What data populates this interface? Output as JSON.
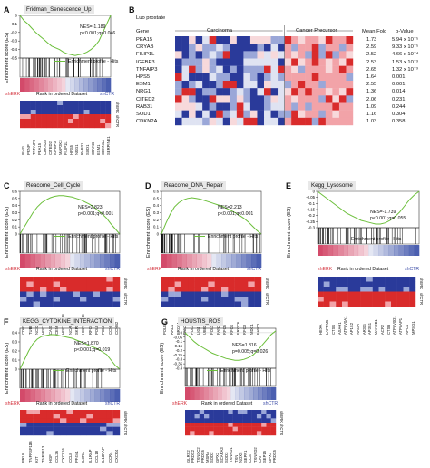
{
  "panels": {
    "A": {
      "label": "A",
      "title": "Fridman_Senescence_Up",
      "nes": "NES=-1.189",
      "p": "p<0.001;q=0.046",
      "legend": "Enrichment profile - Hits",
      "left": "shERK",
      "mid": "Rank in ordered Dataset",
      "right": "shCTR",
      "ylabel": "Enrichment score (ES)",
      "genes": [
        "IFNG",
        "PRNP",
        "TNFAIP3",
        "PEA15",
        "CDKN2A",
        "CITED2",
        "IGFBP3",
        "MAP2K3",
        "FILIP1L",
        "HPS5",
        "NRG1",
        "RAB31",
        "SOD1",
        "CRYAB",
        "ESM1",
        "CDKN1A",
        "SERPINE1"
      ],
      "right_labels": [
        "shERK",
        "shCTR"
      ],
      "yticks": [
        "0",
        "-0.1",
        "-0.2",
        "-0.3",
        "-0.4",
        "-0.5"
      ],
      "axis": [
        0,
        -0.5
      ],
      "curve": [
        0,
        -0.06,
        -0.1,
        -0.15,
        -0.2,
        -0.24,
        -0.28,
        -0.32,
        -0.36,
        -0.38,
        -0.4,
        -0.43,
        -0.45,
        -0.46,
        -0.47,
        -0.46,
        -0.45,
        -0.43,
        -0.4,
        -0.36,
        -0.3,
        -0.2,
        -0.1,
        0
      ]
    },
    "B": {
      "label": "B",
      "source": "Luo prostate",
      "gene_head": "Gene",
      "group1": "Carcinoma",
      "group2": "Cancer Precursor",
      "fold_head": "Mean Fold",
      "p_head": "p-Value",
      "genes": [
        "PEA15",
        "CRYAB",
        "FILIP1L",
        "IGFBP3",
        "TNFAIP3",
        "HPS5",
        "ESM1",
        "NRG1",
        "CITED2",
        "RAB31",
        "SOD1",
        "CDKN2A"
      ],
      "folds": [
        "1.73",
        "2.59",
        "2.52",
        "2.53",
        "2.65",
        "1.64",
        "2.55",
        "1.36",
        "2.06",
        "1.09",
        "1.16",
        "1.03"
      ],
      "pvals": [
        "5.94 x 10⁻⁵",
        "9.33 x 10⁻⁵",
        "4.66 x 10⁻⁴",
        "1.53 x 10⁻³",
        "1.32 x 10⁻³",
        "0.001",
        "0.001",
        "0.014",
        "0.231",
        "0.244",
        "0.304",
        "0.358"
      ]
    },
    "C": {
      "label": "C",
      "title": "Reacome_Cell_Cycle",
      "nes": "NES=2.823",
      "p": "p<0.001;q<0.001",
      "legend": "Enrichment profile - Hits",
      "left": "shERK",
      "mid": "Rank in ordered Dataset",
      "right": "shCTR",
      "ylabel": "Enrichment score (ES)",
      "genes": [
        "CDK1",
        "TUBB",
        "NCS2",
        "HIST1H4J",
        "CASC5",
        "CENPM",
        "HIST1H2BB",
        "NCAPG",
        "SKP2",
        "HIST2H2BE",
        "RFC4",
        "POLE2",
        "POLD3",
        "CCNE2",
        "CCNB2"
      ],
      "right_labels": [
        "shERK",
        "shCTR"
      ],
      "yticks": [
        "0.6",
        "0.5",
        "0.4",
        "0.3",
        "0.2",
        "0.1",
        "0"
      ],
      "axis": [
        0.6,
        0
      ],
      "curve": [
        0,
        0.1,
        0.2,
        0.3,
        0.38,
        0.44,
        0.48,
        0.51,
        0.53,
        0.54,
        0.54,
        0.53,
        0.52,
        0.5,
        0.48,
        0.45,
        0.42,
        0.38,
        0.33,
        0.28,
        0.22,
        0.14,
        0.07,
        0
      ]
    },
    "D": {
      "label": "D",
      "title": "Reacome_DNA_Repair",
      "nes": "NES=2.213",
      "p": "p<0.001;q<0.001",
      "legend": "Enrichment profile - Hits",
      "left": "shERK",
      "mid": "Rank in ordered Dataset",
      "right": "shCTR",
      "ylabel": "Enrichment score (ES)",
      "genes": [
        "POLE2",
        "RAD1",
        "BRCA1",
        "FANCE",
        "POLD3",
        "LIG1",
        "UBE2T",
        "POLD1",
        "FANCA",
        "RFC5",
        "RFC4",
        "ERCC6",
        "RFC3",
        "MDC1",
        "FANCI"
      ],
      "right_labels": [
        "shERK",
        "shCTR"
      ],
      "yticks": [
        "0.6",
        "0.5",
        "0.4",
        "0.3",
        "0.2",
        "0.1",
        "0"
      ],
      "axis": [
        0.6,
        0
      ],
      "curve": [
        0,
        0.15,
        0.28,
        0.38,
        0.44,
        0.48,
        0.5,
        0.51,
        0.5,
        0.49,
        0.47,
        0.45,
        0.43,
        0.41,
        0.39,
        0.36,
        0.33,
        0.3,
        0.26,
        0.22,
        0.17,
        0.11,
        0.05,
        0
      ]
    },
    "E": {
      "label": "E",
      "title": "Kegg_Lysosome",
      "nes": "NES=-1.739",
      "p": "p<0.001;q=0.055",
      "legend": "Enrichment profile - Hits",
      "left": "shERK",
      "mid": "Rank in ordered Dataset",
      "right": "shCTR",
      "ylabel": "Enrichment score (ES)",
      "genes": [
        "HEXA",
        "LAPTM5",
        "CTSS",
        "ASAH1",
        "ATP6V0A1",
        "AP1S2",
        "NAGA",
        "ARSG",
        "AP3S1",
        "MAN2B1",
        "ACP2",
        "CTSB",
        "ATP6V0D1",
        "ATP6AP1",
        "NPC1",
        "MPSG1"
      ],
      "right_labels": [
        "shERK",
        "shCTR"
      ],
      "yticks": [
        "0",
        "-0.05",
        "-0.1",
        "-0.15",
        "-0.2",
        "-0.25",
        "-0.3"
      ],
      "axis": [
        0,
        -0.3
      ],
      "curve": [
        0,
        -0.03,
        -0.06,
        -0.09,
        -0.12,
        -0.15,
        -0.18,
        -0.2,
        -0.22,
        -0.24,
        -0.25,
        -0.26,
        -0.27,
        -0.27,
        -0.26,
        -0.24,
        -0.21,
        -0.17,
        -0.12,
        -0.07,
        -0.03,
        0
      ]
    },
    "F": {
      "label": "F",
      "title": "KEGG_CYTOKINE_INTERACTION",
      "nes": "NES=1.870",
      "p": "p<0.001;q=0.019",
      "legend": "Enrichment profile - Hits",
      "left": "shERK",
      "mid": "Rank in ordered Dataset",
      "right": "shCTR",
      "ylabel": "Enrichment score (ES)",
      "genes": [
        "PRLR",
        "TNFRSF11B",
        "KIT",
        "TNFSF13",
        "HGF",
        "CCL26",
        "CXCL16",
        "CCL8",
        "PF4V1",
        "IL3RA",
        "IL1RAP",
        "CCL18",
        "IL18RAP",
        "CCR4",
        "CXCR4"
      ],
      "right_labels": [
        "shERK",
        "shCTR"
      ],
      "yticks": [
        "0.4",
        "0.3",
        "0.2",
        "0.1",
        "0"
      ],
      "axis": [
        0.45,
        0
      ],
      "curve": [
        0,
        0.1,
        0.2,
        0.28,
        0.33,
        0.36,
        0.37,
        0.38,
        0.38,
        0.37,
        0.36,
        0.35,
        0.34,
        0.32,
        0.3,
        0.28,
        0.26,
        0.24,
        0.22,
        0.19,
        0.16,
        0.1,
        0.04,
        0
      ]
    },
    "G": {
      "label": "G",
      "title": "HOUSTIS_ROS",
      "nes": "NES=1.816",
      "p": "p=0.005;q=0.026",
      "legend": "Enrichment profile - Hits",
      "left": "shERK",
      "mid": "Rank in ordered Dataset",
      "right": "shCTR",
      "ylabel": "Enrichment score (ES)",
      "genes": [
        "GLRX2",
        "PRDX2",
        "TXNDC2",
        "PRDX6",
        "MSRA",
        "SOD2",
        "GPX3",
        "SCARA3",
        "SOD3",
        "TXNRD1",
        "TXN",
        "NOX5",
        "SEPP1",
        "CCS",
        "TXNRD2",
        "CAT",
        "SEP15",
        "GPX1",
        "PRDX5"
      ],
      "right_labels": [
        "shERK",
        "shCTR"
      ],
      "yticks": [
        "0",
        "-0.05",
        "-0.1",
        "-0.15",
        "-0.2",
        "-0.25",
        "-0.3",
        "-0.35",
        "-0.4"
      ],
      "axis": [
        0.05,
        -0.4
      ],
      "curve": [
        0,
        -0.05,
        -0.1,
        -0.14,
        -0.17,
        -0.2,
        -0.23,
        -0.25,
        -0.27,
        -0.29,
        -0.3,
        -0.31,
        -0.31,
        -0.3,
        -0.28,
        -0.25,
        -0.2,
        -0.14,
        -0.08,
        -0.02,
        0.02
      ]
    }
  },
  "colors": {
    "curve": "#6bbf3a",
    "red": "#d92b2b",
    "blue": "#2a3a9a",
    "light_red": "#f2a3a8",
    "light_blue": "#9aa7d8",
    "rank_red": "#d34a6a",
    "rank_blue": "#4b5fb0"
  }
}
